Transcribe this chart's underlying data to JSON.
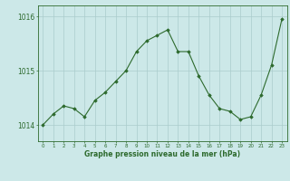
{
  "x": [
    0,
    1,
    2,
    3,
    4,
    5,
    6,
    7,
    8,
    9,
    10,
    11,
    12,
    13,
    14,
    15,
    16,
    17,
    18,
    19,
    20,
    21,
    22,
    23
  ],
  "y": [
    1014.0,
    1014.2,
    1014.35,
    1014.3,
    1014.15,
    1014.45,
    1014.6,
    1014.8,
    1015.0,
    1015.35,
    1015.55,
    1015.65,
    1015.75,
    1015.35,
    1015.35,
    1014.9,
    1014.55,
    1014.3,
    1014.25,
    1014.1,
    1014.15,
    1014.55,
    1015.1,
    1015.95
  ],
  "line_color": "#2d6a2d",
  "marker_color": "#2d6a2d",
  "bg_color": "#cce8e8",
  "grid_color": "#aacccc",
  "axis_label_color": "#2d6a2d",
  "tick_color": "#2d6a2d",
  "xlabel": "Graphe pression niveau de la mer (hPa)",
  "yticks": [
    1014,
    1015,
    1016
  ],
  "xticks": [
    0,
    1,
    2,
    3,
    4,
    5,
    6,
    7,
    8,
    9,
    10,
    11,
    12,
    13,
    14,
    15,
    16,
    17,
    18,
    19,
    20,
    21,
    22,
    23
  ],
  "ylim": [
    1013.7,
    1016.2
  ],
  "xlim": [
    -0.5,
    23.5
  ],
  "figsize": [
    3.2,
    2.0
  ],
  "dpi": 100
}
